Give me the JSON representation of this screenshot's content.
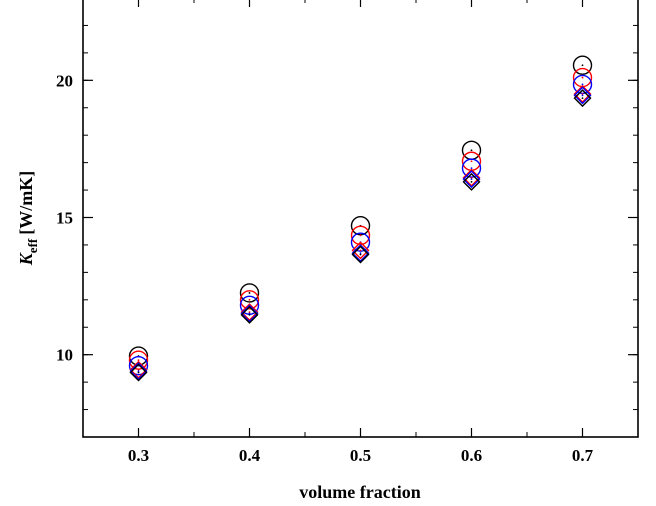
{
  "chart_data": {
    "type": "scatter",
    "xlabel": "volume fraction",
    "ylabel_main": "K",
    "ylabel_sub": "eff",
    "ylabel_unit": "[W/mK]",
    "xlim": [
      0.25,
      0.75
    ],
    "ylim": [
      7.0,
      23.0
    ],
    "xticks": [
      "0.3",
      "0.4",
      "0.5",
      "0.6",
      "0.7"
    ],
    "yticks": [
      "10",
      "15",
      "20"
    ],
    "x": [
      0.3,
      0.4,
      0.5,
      0.6,
      0.7
    ],
    "series": [
      {
        "marker": "circle",
        "color": "#000000",
        "values": [
          9.95,
          12.25,
          14.7,
          17.45,
          20.55
        ]
      },
      {
        "marker": "circle",
        "color": "#ff0000",
        "values": [
          9.8,
          12.0,
          14.35,
          17.05,
          20.1
        ]
      },
      {
        "marker": "circle",
        "color": "#0000ff",
        "values": [
          9.6,
          11.8,
          14.1,
          16.8,
          19.85
        ]
      },
      {
        "marker": "diamond",
        "color": "#ff0000",
        "values": [
          9.45,
          11.55,
          13.8,
          16.45,
          19.5
        ]
      },
      {
        "marker": "diamond",
        "color": "#0000ff",
        "values": [
          9.4,
          11.5,
          13.7,
          16.4,
          19.45
        ]
      },
      {
        "marker": "diamond",
        "color": "#000000",
        "values": [
          9.35,
          11.45,
          13.65,
          16.3,
          19.35
        ]
      }
    ],
    "grid": false
  }
}
